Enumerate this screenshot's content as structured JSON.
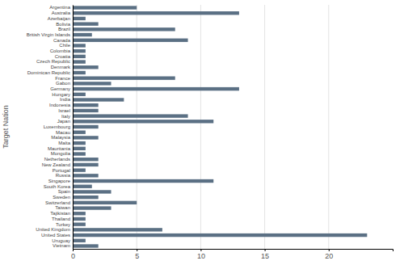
{
  "chart_data": {
    "type": "bar",
    "orientation": "horizontal",
    "ylabel": "Target Nation",
    "categories": [
      "Argentina",
      "Australia",
      "Azerbaijan",
      "Bolivia",
      "Brazil",
      "British Virgin Islands",
      "Canada",
      "Chile",
      "Colombia",
      "Croatia",
      "Czech Republic",
      "Denmark",
      "Dominican Republic",
      "France",
      "Gabon",
      "Germany",
      "Hungary",
      "India",
      "Indonesia",
      "Israel",
      "Italy",
      "Japan",
      "Luxembourg",
      "Macau",
      "Malaysia",
      "Malta",
      "Mauritania",
      "Mongolia",
      "Netherlands",
      "New Zealand",
      "Portugal",
      "Russia",
      "Singapore",
      "South Korea",
      "Spain",
      "Sweden",
      "Switzerland",
      "Taiwan",
      "Tajikistan",
      "Thailand",
      "Turkey",
      "United Kingdom",
      "United States",
      "Uruguay",
      "Vietnam"
    ],
    "values": [
      5,
      13,
      1,
      2,
      8,
      1.5,
      9,
      1,
      1,
      1,
      1,
      2,
      1,
      8,
      3,
      13,
      1,
      4,
      2,
      2,
      9,
      11,
      2,
      1,
      2,
      1,
      1,
      1,
      2,
      2,
      1,
      2,
      11,
      1.5,
      3,
      2,
      5,
      3,
      1,
      1,
      1,
      7,
      23,
      1,
      2
    ],
    "color": "#5b7084",
    "xlim": [
      0,
      25
    ],
    "xticks": [
      0,
      5,
      10,
      15,
      20
    ],
    "grid": true
  }
}
